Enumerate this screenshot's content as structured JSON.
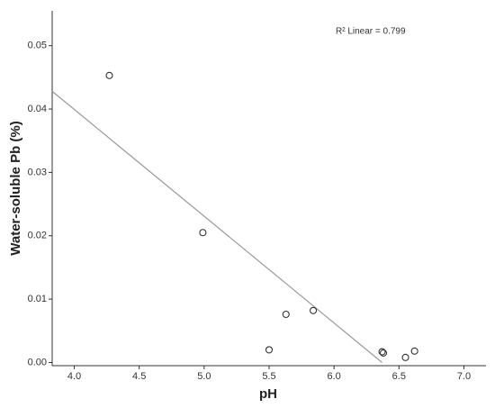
{
  "chart_data": {
    "type": "scatter",
    "x_label": "pH",
    "y_label": "Water-soluble Pb (%)",
    "annotation": "R² Linear = 0.799",
    "x": [
      4.27,
      4.99,
      5.5,
      5.63,
      5.84,
      6.37,
      6.38,
      6.55,
      6.62
    ],
    "values": [
      0.0453,
      0.0205,
      0.002,
      0.0076,
      0.0082,
      0.0017,
      0.0015,
      0.0008,
      0.0018
    ],
    "color": "#333333",
    "fit_line": {
      "x": [
        3.83,
        6.37
      ],
      "values": [
        0.0428,
        0
      ],
      "color": "#999999"
    },
    "xlim": [
      3.83,
      7.17
    ],
    "xticks": [
      {
        "value": 4,
        "label": "4.0"
      },
      {
        "value": 4.5,
        "label": "4.5"
      },
      {
        "value": 5,
        "label": "5.0"
      },
      {
        "value": 5.5,
        "label": "5.5"
      },
      {
        "value": 6,
        "label": "6.0"
      },
      {
        "value": 6.5,
        "label": "6.5"
      },
      {
        "value": 7,
        "label": "7.0"
      }
    ],
    "ylim": [
      -0.0005,
      0.0555
    ],
    "yticks": [
      {
        "value": 0,
        "label": "0.00"
      },
      0.01,
      0.02,
      0.03,
      0.04,
      0.05
    ],
    "grid": false
  }
}
